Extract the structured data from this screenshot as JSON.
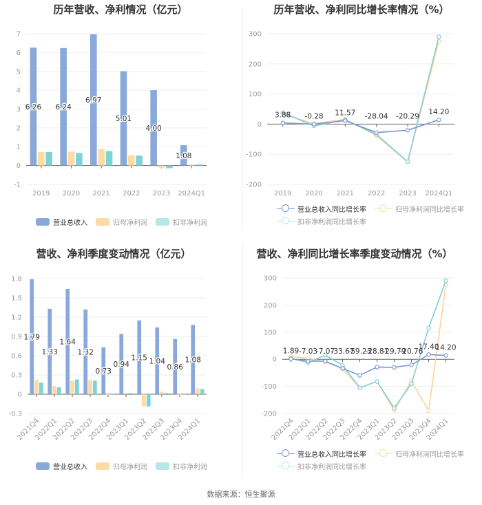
{
  "footer": {
    "source_label": "数据来源：恒生聚源"
  },
  "colors": {
    "revenue": "#8aa9db",
    "net_profit": "#fddba5",
    "deducted_profit": "#7fd3d6",
    "line_revenue": "#7b96d6",
    "line_net": "#fbd496",
    "line_deducted": "#7dd0d4",
    "grid": "#eeeeee",
    "axis": "#666666",
    "tick_label": "#999999",
    "value_label": "#333333"
  },
  "chart_data": [
    {
      "id": "annual-revenue-profit",
      "type": "bar",
      "title": "历年营收、净利情况（亿元）",
      "categories": [
        "2019",
        "2020",
        "2021",
        "2022",
        "2023",
        "2024Q1"
      ],
      "series": [
        {
          "name": "营业总收入",
          "values": [
            6.26,
            6.24,
            6.97,
            5.01,
            4.0,
            1.08
          ],
          "labels": [
            "6.26",
            "6.24",
            "6.97",
            "5.01",
            "4.00",
            "1.08"
          ]
        },
        {
          "name": "归母净利润",
          "values": [
            0.72,
            0.74,
            0.88,
            0.54,
            -0.12,
            0.06
          ]
        },
        {
          "name": "扣非净利润",
          "values": [
            0.72,
            0.67,
            0.77,
            0.53,
            -0.14,
            0.06
          ]
        }
      ],
      "yticks": [
        "7",
        "6",
        "5",
        "4",
        "3",
        "2",
        "1",
        "0",
        "-1"
      ],
      "ylim": [
        -1,
        7
      ],
      "legend_position": "bottom",
      "grid": true
    },
    {
      "id": "annual-growth-rate",
      "type": "line",
      "title": "历年营收、净利同比增长率情况（%）",
      "categories": [
        "2019",
        "2020",
        "2021",
        "2022",
        "2023",
        "2024Q1"
      ],
      "series": [
        {
          "name": "营业总收入同比增长率",
          "values": [
            3.88,
            -0.28,
            11.57,
            -28.04,
            -20.29,
            14.2
          ],
          "labels": [
            "3.88",
            "-0.28",
            "11.57",
            "-28.04",
            "-20.29",
            "14.20"
          ]
        },
        {
          "name": "归母净利润同比增长率",
          "values": [
            33,
            2,
            16,
            -38,
            -125,
            275
          ]
        },
        {
          "name": "扣非净利润同比增长率",
          "values": [
            38,
            -6,
            14,
            -34,
            -125,
            290
          ]
        }
      ],
      "yticks": [
        "300",
        "200",
        "100",
        "0",
        "-100",
        "-200"
      ],
      "ylim": [
        -200,
        300
      ],
      "legend_position": "bottom",
      "grid": true
    },
    {
      "id": "quarterly-revenue-profit",
      "type": "bar",
      "title": "营收、净利季度变动情况（亿元）",
      "categories": [
        "2021Q4",
        "2022Q1",
        "2022Q2",
        "2022Q3",
        "2022Q4",
        "2023Q1",
        "2023Q2",
        "2023Q3",
        "2023Q4",
        "2024Q1"
      ],
      "series": [
        {
          "name": "营业总收入",
          "values": [
            1.79,
            1.33,
            1.64,
            1.32,
            0.73,
            0.94,
            1.15,
            1.04,
            0.86,
            1.08
          ],
          "labels": [
            "1.79",
            "1.33",
            "1.64",
            "1.32",
            "0.73",
            "0.94",
            "1.15",
            "1.04",
            "0.86",
            "1.08"
          ]
        },
        {
          "name": "归母净利润",
          "values": [
            0.22,
            0.13,
            0.21,
            0.22,
            0.0,
            0.02,
            -0.19,
            0.04,
            0.0,
            0.09
          ]
        },
        {
          "name": "扣非净利润",
          "values": [
            0.18,
            0.11,
            0.23,
            0.21,
            0.0,
            0.02,
            -0.19,
            0.02,
            0.0,
            0.08
          ]
        }
      ],
      "yticks": [
        "1.8",
        "1.5",
        "1.2",
        "0.9",
        "0.6",
        "0.3",
        "0",
        "-0.3"
      ],
      "ylim": [
        -0.3,
        1.8
      ],
      "legend_position": "bottom",
      "grid": true
    },
    {
      "id": "quarterly-growth-rate",
      "type": "line",
      "title": "营收、净利同比增长率季度变动情况（%）",
      "categories": [
        "2021Q4",
        "2022Q1",
        "2022Q2",
        "2022Q3",
        "2022Q4",
        "2023Q1",
        "2023Q2",
        "2023Q3",
        "2023Q4",
        "2024Q1"
      ],
      "series": [
        {
          "name": "营业总收入同比增长率",
          "values": [
            1.89,
            -7.03,
            -7.07,
            -33.67,
            -59.23,
            -28.81,
            -29.79,
            -20.76,
            17.4,
            14.2
          ],
          "labels": [
            "1.89",
            "-7.03",
            "-7.07",
            "-33.67",
            "-59.23",
            "-28.81",
            "-29.79",
            "-20.76",
            "17.40",
            "14.20"
          ]
        },
        {
          "name": "归母净利润同比增长率",
          "values": [
            10,
            4,
            -10,
            -35,
            -105,
            -82,
            -188,
            -80,
            -190,
            275
          ]
        },
        {
          "name": "扣非净利润同比增长率",
          "values": [
            3,
            -12,
            15,
            -22,
            -105,
            -82,
            -180,
            -90,
            115,
            290
          ]
        }
      ],
      "yticks": [
        "300",
        "200",
        "100",
        "0",
        "-100",
        "-200"
      ],
      "ylim": [
        -200,
        300
      ],
      "legend_position": "bottom",
      "grid": true
    }
  ]
}
